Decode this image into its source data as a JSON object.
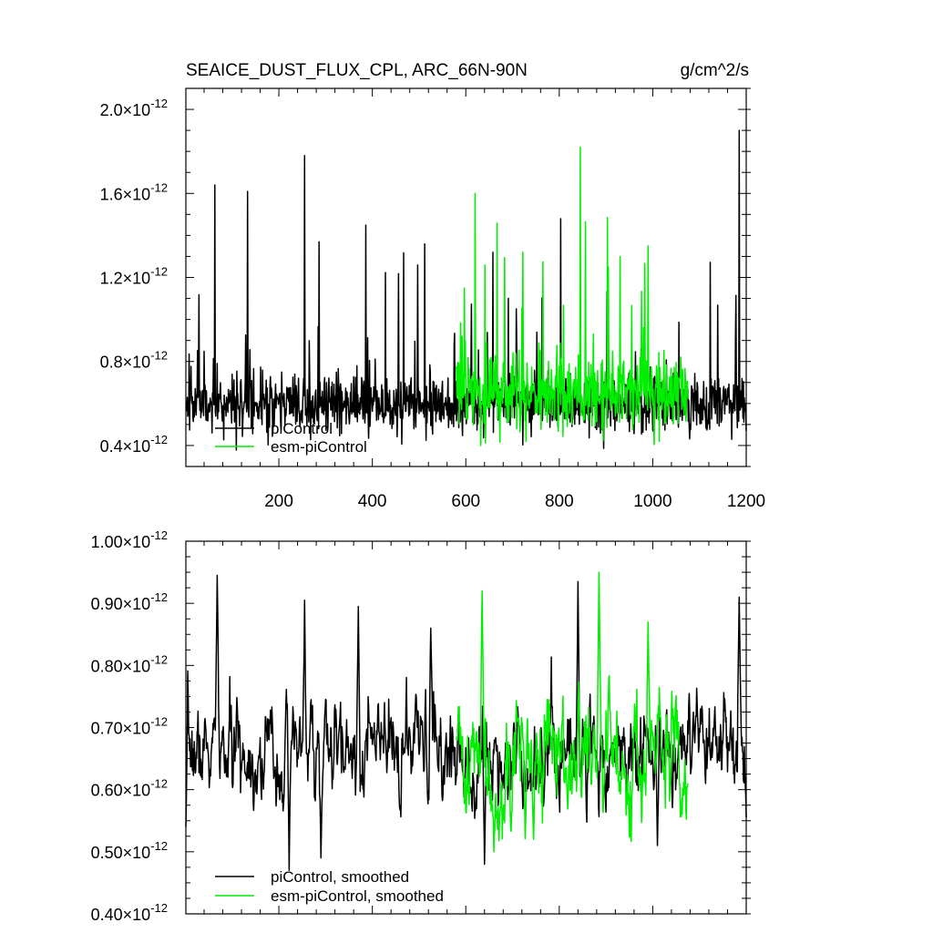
{
  "header": {
    "title": "SEAICE_DUST_FLUX_CPL, ARC_66N-90N",
    "units": "g/cm^2/s"
  },
  "colors": {
    "piControl": "#000000",
    "esm_piControl": "#00ee00",
    "axis": "#000000",
    "background": "#ffffff"
  },
  "chart_data": [
    {
      "type": "line",
      "title": "SEAICE_DUST_FLUX_CPL, ARC_66N-90N",
      "units": "g/cm^2/s",
      "xlim": [
        1,
        1200
      ],
      "ylim": [
        3e-13,
        2.1e-12
      ],
      "x_ticks": [
        200,
        400,
        600,
        800,
        1000,
        1200
      ],
      "x_tick_labels": [
        "200",
        "400",
        "600",
        "800",
        "1000",
        "1200"
      ],
      "y_ticks": [
        4e-13,
        8e-13,
        1.2e-12,
        1.6e-12,
        2e-12
      ],
      "y_tick_labels": [
        {
          "mant": "0.4",
          "exp": "-12"
        },
        {
          "mant": "0.8",
          "exp": "-12"
        },
        {
          "mant": "1.2",
          "exp": "-12"
        },
        {
          "mant": "1.6",
          "exp": "-12"
        },
        {
          "mant": "2.0",
          "exp": "-12"
        }
      ],
      "legend": "bottom-left",
      "grid": false,
      "series": [
        {
          "name": "piControl",
          "x_range": [
            1,
            1200
          ],
          "seed": 11,
          "base": 6e-13,
          "spread": 1e-13,
          "spike_prob": 0.04,
          "min": 3.2e-13,
          "spikes": [
            [
              63,
              1.64e-12
            ],
            [
              133,
              1.61e-12
            ],
            [
              255,
              1.78e-12
            ],
            [
              512,
              1.36e-12
            ],
            [
              658,
              1.32e-12
            ],
            [
              803,
              1.48e-12
            ],
            [
              1185,
              1.9e-12
            ]
          ]
        },
        {
          "name": "esm-piControl",
          "x_range": [
            580,
            1075
          ],
          "seed": 29,
          "base": 6.5e-13,
          "spread": 1.3e-13,
          "spike_prob": 0.06,
          "min": 3.1e-13,
          "spikes": [
            [
              620,
              1.6e-12
            ],
            [
              845,
              1.82e-12
            ],
            [
              722,
              1.32e-12
            ],
            [
              990,
              1.35e-12
            ],
            [
              930,
              1.3e-12
            ]
          ]
        }
      ]
    },
    {
      "type": "line",
      "xlim": [
        1,
        1200
      ],
      "ylim": [
        4e-13,
        1e-12
      ],
      "x_ticks": [
        200,
        400,
        600,
        800,
        1000,
        1200
      ],
      "y_ticks": [
        4e-13,
        5e-13,
        6e-13,
        7e-13,
        8e-13,
        9e-13,
        1e-12
      ],
      "y_tick_labels": [
        {
          "mant": "0.40",
          "exp": "-12"
        },
        {
          "mant": "0.50",
          "exp": "-12"
        },
        {
          "mant": "0.60",
          "exp": "-12"
        },
        {
          "mant": "0.70",
          "exp": "-12"
        },
        {
          "mant": "0.80",
          "exp": "-12"
        },
        {
          "mant": "0.90",
          "exp": "-12"
        },
        {
          "mant": "1.00",
          "exp": "-12"
        }
      ],
      "legend": "bottom-left",
      "grid": false,
      "series": [
        {
          "name": "piControl, smoothed",
          "x_range": [
            1,
            1200
          ],
          "seed": 7,
          "base": 6.6e-13,
          "spread": 7e-14,
          "min": 4.7e-13,
          "max": 9.5e-13,
          "anchors": [
            [
              1,
              5.4e-13
            ],
            [
              68,
              9.45e-13
            ],
            [
              222,
              4.7e-13
            ],
            [
              255,
              9.05e-13
            ],
            [
              290,
              4.9e-13
            ],
            [
              370,
              8.95e-13
            ],
            [
              525,
              8.6e-13
            ],
            [
              640,
              4.8e-13
            ],
            [
              840,
              9.35e-13
            ],
            [
              1010,
              5.1e-13
            ],
            [
              1185,
              9.1e-13
            ],
            [
              1200,
              5.55e-13
            ]
          ]
        },
        {
          "name": "esm-piControl, smoothed",
          "x_range": [
            580,
            1075
          ],
          "seed": 41,
          "base": 6.5e-13,
          "spread": 9e-14,
          "min": 5e-13,
          "max": 9.5e-13,
          "anchors": [
            [
              580,
              6.8e-13
            ],
            [
              635,
              9.2e-13
            ],
            [
              660,
              5e-13
            ],
            [
              745,
              5.2e-13
            ],
            [
              885,
              9.5e-13
            ],
            [
              990,
              8.7e-13
            ],
            [
              1075,
              6.1e-13
            ]
          ]
        }
      ]
    }
  ]
}
